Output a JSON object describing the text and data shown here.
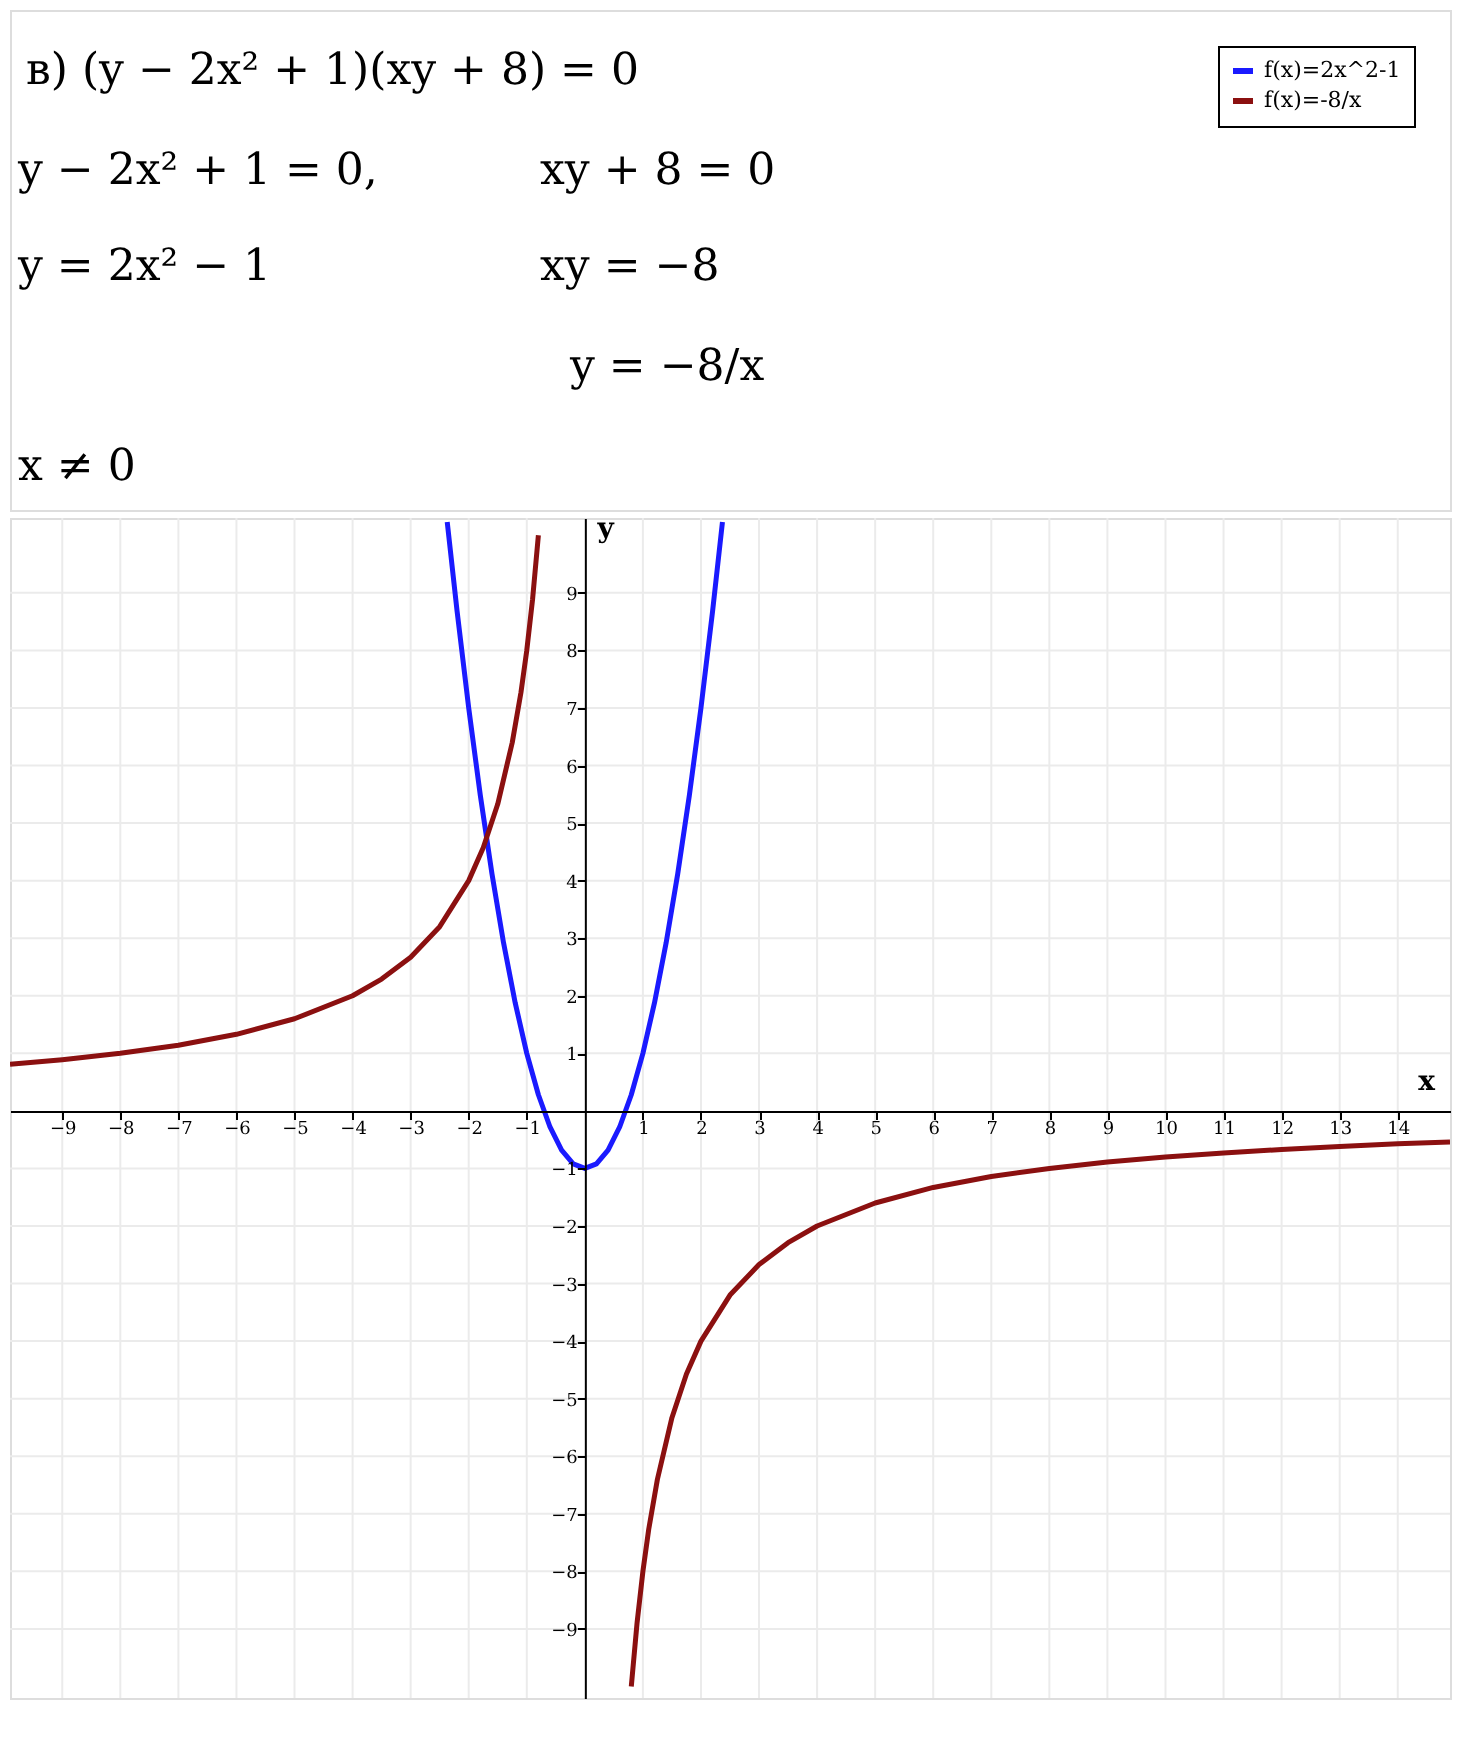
{
  "chart_data": {
    "type": "line",
    "annotations": [
      "в) (y − 2x² + 1)(xy + 8) = 0",
      "y − 2x² + 1 = 0,",
      "xy + 8 = 0",
      "y = 2x² − 1",
      "xy = −8",
      "y = −8/x",
      "x ≠ 0"
    ],
    "xlabel": "x",
    "ylabel": "y",
    "xlim": [
      -9.9,
      14.9
    ],
    "ylim": [
      -10.2,
      10.3
    ],
    "xticks": [
      -9,
      -8,
      -7,
      -6,
      -5,
      -4,
      -3,
      -2,
      -1,
      1,
      2,
      3,
      4,
      5,
      6,
      7,
      8,
      9,
      10,
      11,
      12,
      13,
      14
    ],
    "yticks": [
      -9,
      -8,
      -7,
      -6,
      -5,
      -4,
      -3,
      -2,
      -1,
      1,
      2,
      3,
      4,
      5,
      6,
      7,
      8,
      9
    ],
    "grid": true,
    "legend": "top right",
    "marker": "none",
    "line_style": "solid",
    "series": [
      {
        "name": "f(x)=2x^2-1",
        "color": "#1a1aff",
        "x": [
          -2.37,
          -2.2,
          -2,
          -1.8,
          -1.6,
          -1.4,
          -1.2,
          -1,
          -0.8,
          -0.6,
          -0.4,
          -0.2,
          0,
          0.2,
          0.4,
          0.6,
          0.8,
          1,
          1.2,
          1.4,
          1.6,
          1.8,
          2,
          2.2,
          2.37
        ],
        "values": [
          10.23,
          8.68,
          7,
          5.48,
          4.12,
          2.92,
          1.88,
          1,
          0.28,
          -0.28,
          -0.68,
          -0.92,
          -1,
          -0.92,
          -0.68,
          -0.28,
          0.28,
          1,
          1.88,
          2.92,
          4.12,
          5.48,
          7,
          8.68,
          10.23
        ]
      },
      {
        "name": "f(x)=-8/x",
        "color": "#8b1010",
        "x": [
          -9.9,
          -9,
          -8,
          -7,
          -6,
          -5,
          -4,
          -3.5,
          -3,
          -2.5,
          -2,
          -1.75,
          -1.5,
          -1.25,
          -1.1,
          -1,
          -0.9,
          -0.8,
          0,
          0.8,
          0.9,
          1,
          1.1,
          1.25,
          1.5,
          1.75,
          2,
          2.5,
          3,
          3.5,
          4,
          5,
          6,
          7,
          8,
          9,
          10,
          11,
          12,
          13,
          14,
          14.9
        ],
        "values": [
          0.81,
          0.89,
          1,
          1.14,
          1.33,
          1.6,
          2,
          2.29,
          2.67,
          3.2,
          4,
          4.57,
          5.33,
          6.4,
          7.27,
          8,
          8.89,
          10,
          null,
          -10,
          -8.89,
          -8,
          -7.27,
          -6.4,
          -5.33,
          -4.57,
          -4,
          -3.2,
          -2.67,
          -2.29,
          -2,
          -1.6,
          -1.33,
          -1.14,
          -1,
          -0.89,
          -0.8,
          -0.73,
          -0.67,
          -0.62,
          -0.57,
          -0.54
        ]
      }
    ]
  }
}
